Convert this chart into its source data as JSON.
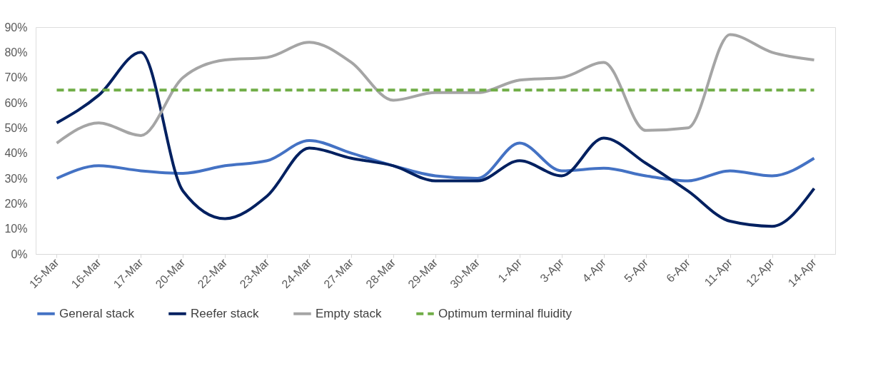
{
  "chart_data": {
    "type": "line",
    "categories": [
      "15-Mar",
      "16-Mar",
      "17-Mar",
      "20-Mar",
      "22-Mar",
      "23-Mar",
      "24-Mar",
      "27-Mar",
      "28-Mar",
      "29-Mar",
      "30-Mar",
      "1-Apr",
      "3-Apr",
      "4-Apr",
      "5-Apr",
      "6-Apr",
      "11-Apr",
      "12-Apr",
      "14-Apr"
    ],
    "series": [
      {
        "name": "General stack",
        "color": "#4472c4",
        "values": [
          30,
          35,
          33,
          32,
          35,
          37,
          45,
          40,
          35,
          31,
          30,
          44,
          33,
          34,
          31,
          29,
          33,
          31,
          38
        ]
      },
      {
        "name": "Reefer stack",
        "color": "#002060",
        "values": [
          52,
          63,
          80,
          25,
          14,
          23,
          42,
          38,
          35,
          29,
          29,
          37,
          31,
          46,
          36,
          25,
          13,
          11,
          26
        ]
      },
      {
        "name": "Empty stack",
        "color": "#a5a5a5",
        "values": [
          44,
          52,
          47,
          70,
          77,
          78,
          84,
          76,
          61,
          64,
          64,
          69,
          70,
          76,
          49,
          50,
          87,
          80,
          77
        ]
      },
      {
        "name": "Optimum terminal fluidity",
        "color": "#70ad47",
        "line_style": "dashed",
        "values": [
          65,
          65,
          65,
          65,
          65,
          65,
          65,
          65,
          65,
          65,
          65,
          65,
          65,
          65,
          65,
          65,
          65,
          65,
          65
        ]
      }
    ],
    "ylim": [
      0,
      90
    ],
    "yticks": [
      {
        "value": 0,
        "label": "0%"
      },
      {
        "value": 10,
        "label": "10%"
      },
      {
        "value": 20,
        "label": "20%"
      },
      {
        "value": 30,
        "label": "30%"
      },
      {
        "value": 40,
        "label": "40%"
      },
      {
        "value": 50,
        "label": "50%"
      },
      {
        "value": 60,
        "label": "60%"
      },
      {
        "value": 70,
        "label": "70%"
      },
      {
        "value": 80,
        "label": "80%"
      },
      {
        "value": 90,
        "label": "90%"
      }
    ],
    "grid": false,
    "legend": "bottom",
    "line_style": "solid",
    "marker": "none"
  }
}
